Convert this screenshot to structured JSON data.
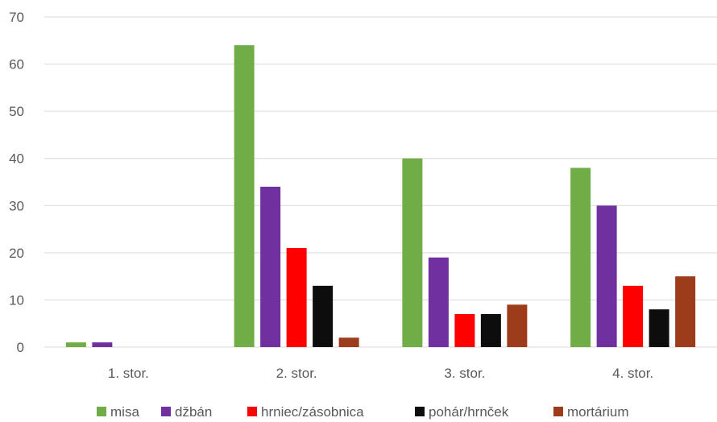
{
  "chart_data": {
    "type": "bar",
    "categories": [
      "1. stor.",
      "2. stor.",
      "3. stor.",
      "4. stor."
    ],
    "series": [
      {
        "name": "misa",
        "color": "#70ad47",
        "values": [
          1,
          64,
          40,
          38
        ]
      },
      {
        "name": "džbán",
        "color": "#7030a0",
        "values": [
          1,
          34,
          19,
          30
        ]
      },
      {
        "name": "hrniec/zásobnica",
        "color": "#ff0000",
        "values": [
          0,
          21,
          7,
          13
        ]
      },
      {
        "name": "pohár/hrnček",
        "color": "#0d0d0d",
        "values": [
          0,
          13,
          7,
          8
        ]
      },
      {
        "name": "mortárium",
        "color": "#9c3c1b",
        "values": [
          0,
          2,
          9,
          15
        ]
      }
    ],
    "ylim": [
      0,
      70
    ],
    "yticks": [
      0,
      10,
      20,
      30,
      40,
      50,
      60,
      70
    ],
    "grid": true,
    "legend_position": "bottom",
    "gridline_color": "#d9d9d9"
  }
}
